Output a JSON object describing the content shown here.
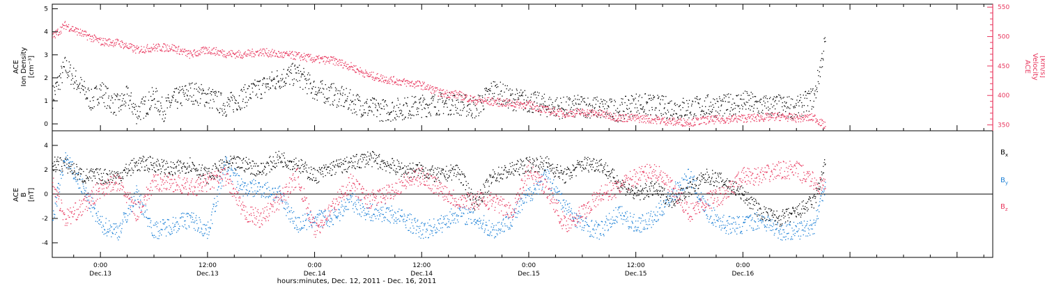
{
  "chart_data": [
    {
      "type": "scatter",
      "panel": "ion-density-velocity",
      "ylabel": [
        "ACE",
        "Ion Density",
        "[cm⁻³]"
      ],
      "y2label": [
        "ACE",
        "Velocity",
        "[km/s]"
      ],
      "ylim": [
        -0.3,
        5.2
      ],
      "yticks": [
        0,
        1,
        2,
        3,
        4,
        5
      ],
      "ylim2": [
        340,
        555
      ],
      "yticks2": [
        350,
        400,
        450,
        500,
        550
      ],
      "series": [
        {
          "axis": "left",
          "color": "#000000",
          "hours": [
            -5.4,
            -4,
            -3,
            -2,
            -1,
            0,
            1,
            2,
            3,
            4,
            5,
            6,
            7,
            8,
            10,
            12,
            14,
            16,
            18,
            20,
            22,
            24,
            26,
            28,
            30,
            32,
            34,
            36,
            38,
            40,
            42,
            44,
            46,
            48,
            50,
            52,
            54,
            56,
            58,
            60,
            62,
            64,
            66,
            68,
            70,
            72,
            74,
            76,
            78,
            80,
            81.2
          ],
          "values": [
            1.2,
            2.5,
            2,
            1.5,
            1,
            1.5,
            1,
            0.8,
            1.2,
            0.5,
            0.8,
            1.2,
            0.6,
            1,
            1.4,
            1.2,
            0.8,
            1.2,
            1.6,
            2,
            2.2,
            1.5,
            1.3,
            1,
            0.7,
            0.6,
            0.7,
            0.8,
            0.9,
            0.9,
            0.7,
            1.5,
            1.1,
            1,
            0.8,
            0.7,
            0.8,
            0.7,
            0.6,
            0.9,
            0.8,
            0.7,
            0.7,
            0.8,
            0.8,
            1,
            0.8,
            0.8,
            0.7,
            1.2,
            3.6
          ]
        },
        {
          "axis": "right",
          "color": "#e8365d",
          "hours": [
            -5.4,
            -4,
            -2,
            0,
            2,
            4,
            6,
            8,
            10,
            12,
            14,
            16,
            18,
            20,
            22,
            24,
            26,
            28,
            30,
            32,
            34,
            36,
            38,
            40,
            42,
            44,
            46,
            48,
            50,
            52,
            54,
            56,
            58,
            60,
            62,
            64,
            66,
            68,
            70,
            72,
            74,
            76,
            78,
            80,
            81.2
          ],
          "values": [
            500,
            520,
            505,
            492,
            490,
            478,
            482,
            482,
            470,
            478,
            472,
            470,
            475,
            470,
            468,
            462,
            460,
            450,
            435,
            428,
            423,
            418,
            405,
            402,
            392,
            390,
            387,
            385,
            375,
            370,
            372,
            370,
            363,
            362,
            360,
            356,
            355,
            359,
            360,
            362,
            363,
            365,
            362,
            363,
            348
          ]
        }
      ]
    },
    {
      "type": "scatter",
      "panel": "magnetic-field",
      "ylabel": [
        "ACE",
        "B",
        "[nT]"
      ],
      "ylim": [
        -5.2,
        5.2
      ],
      "yticks": [
        -4,
        -2,
        0,
        2,
        4
      ],
      "series": [
        {
          "name": "Bx",
          "color": "#000000",
          "hours": [
            -5.4,
            -4,
            -2,
            0,
            2,
            4,
            6,
            8,
            10,
            12,
            14,
            16,
            18,
            20,
            22,
            24,
            26,
            28,
            30,
            32,
            34,
            36,
            38,
            40,
            42,
            44,
            46,
            48,
            50,
            52,
            54,
            56,
            58,
            60,
            62,
            64,
            66,
            68,
            70,
            72,
            74,
            76,
            78,
            80,
            81.2
          ],
          "values": [
            2.5,
            2.5,
            1.5,
            1.5,
            1.5,
            2.5,
            2.5,
            2,
            2.5,
            1.5,
            2.5,
            2.5,
            2,
            3,
            2.5,
            1.5,
            2.2,
            2.5,
            3,
            2.5,
            2,
            2,
            1.5,
            2,
            -0.8,
            1.5,
            2,
            2.5,
            2.5,
            1.5,
            2.5,
            2.5,
            1,
            0,
            0.5,
            -0.5,
            0.5,
            1.5,
            1,
            0,
            -1.5,
            -2,
            -1.5,
            -0.5,
            2.5
          ]
        },
        {
          "name": "By",
          "color": "#1a7fd6",
          "hours": [
            -5.4,
            -4,
            -2,
            0,
            2,
            4,
            6,
            8,
            10,
            12,
            14,
            16,
            18,
            20,
            22,
            24,
            26,
            28,
            30,
            32,
            34,
            36,
            38,
            40,
            42,
            44,
            46,
            48,
            50,
            52,
            54,
            56,
            58,
            60,
            62,
            64,
            66,
            68,
            70,
            72,
            74,
            76,
            78,
            80,
            81.2
          ],
          "values": [
            -2,
            3,
            0.5,
            -2.5,
            -3,
            0,
            -3,
            -2.5,
            -2,
            -3,
            2.5,
            0.5,
            0.5,
            0,
            -2.5,
            -2,
            -2,
            -0.5,
            -1.5,
            -1.5,
            -2,
            -3,
            -2.5,
            -1.5,
            -2,
            -3,
            -2,
            0,
            1.5,
            -1,
            -2.5,
            -3,
            -1.5,
            -2.5,
            -2,
            0,
            1.5,
            -1.5,
            -2.5,
            -2.5,
            -2,
            -3,
            -3,
            -2.5,
            1
          ]
        },
        {
          "name": "Bz",
          "color": "#e8365d",
          "hours": [
            -5.4,
            -4,
            -2,
            0,
            2,
            4,
            6,
            8,
            10,
            12,
            14,
            16,
            18,
            20,
            22,
            24,
            26,
            28,
            30,
            32,
            34,
            36,
            38,
            40,
            42,
            44,
            46,
            48,
            50,
            52,
            54,
            56,
            58,
            60,
            62,
            64,
            66,
            68,
            70,
            72,
            74,
            76,
            78,
            80,
            81.2
          ],
          "values": [
            1,
            -2,
            -1,
            0.5,
            1,
            -1.5,
            1,
            1,
            0.5,
            1,
            1.5,
            -1.5,
            -2,
            -0.5,
            1.5,
            -3,
            -1,
            1,
            -0.5,
            0,
            1,
            1.5,
            0.5,
            -0.5,
            -0.5,
            -0.5,
            -1.5,
            2,
            0.5,
            -2.5,
            -1.5,
            0,
            0.5,
            1.5,
            2,
            0.5,
            -1.5,
            -0.5,
            0,
            1.5,
            1.5,
            2,
            2,
            1,
            0.5
          ]
        }
      ]
    }
  ],
  "time_axis": {
    "hours_range": [
      -5.4,
      100
    ],
    "xlabel": "hours:minutes, Dec. 12, 2011 - Dec. 16, 2011",
    "ticks": [
      {
        "hours": 0,
        "time": "0:00",
        "date": "Dec.13"
      },
      {
        "hours": 12,
        "time": "12:00",
        "date": "Dec.13"
      },
      {
        "hours": 24,
        "time": "0:00",
        "date": "Dec.14"
      },
      {
        "hours": 36,
        "time": "12:00",
        "date": "Dec.14"
      },
      {
        "hours": 48,
        "time": "0:00",
        "date": "Dec.15"
      },
      {
        "hours": 60,
        "time": "12:00",
        "date": "Dec.15"
      },
      {
        "hours": 72,
        "time": "0:00",
        "date": "Dec.16"
      }
    ]
  },
  "legend": [
    {
      "text": "B",
      "sub": "x",
      "color": "#000000"
    },
    {
      "text": "B",
      "sub": "y",
      "color": "#1a7fd6"
    },
    {
      "text": "B",
      "sub": "z",
      "color": "#e8365d"
    }
  ]
}
